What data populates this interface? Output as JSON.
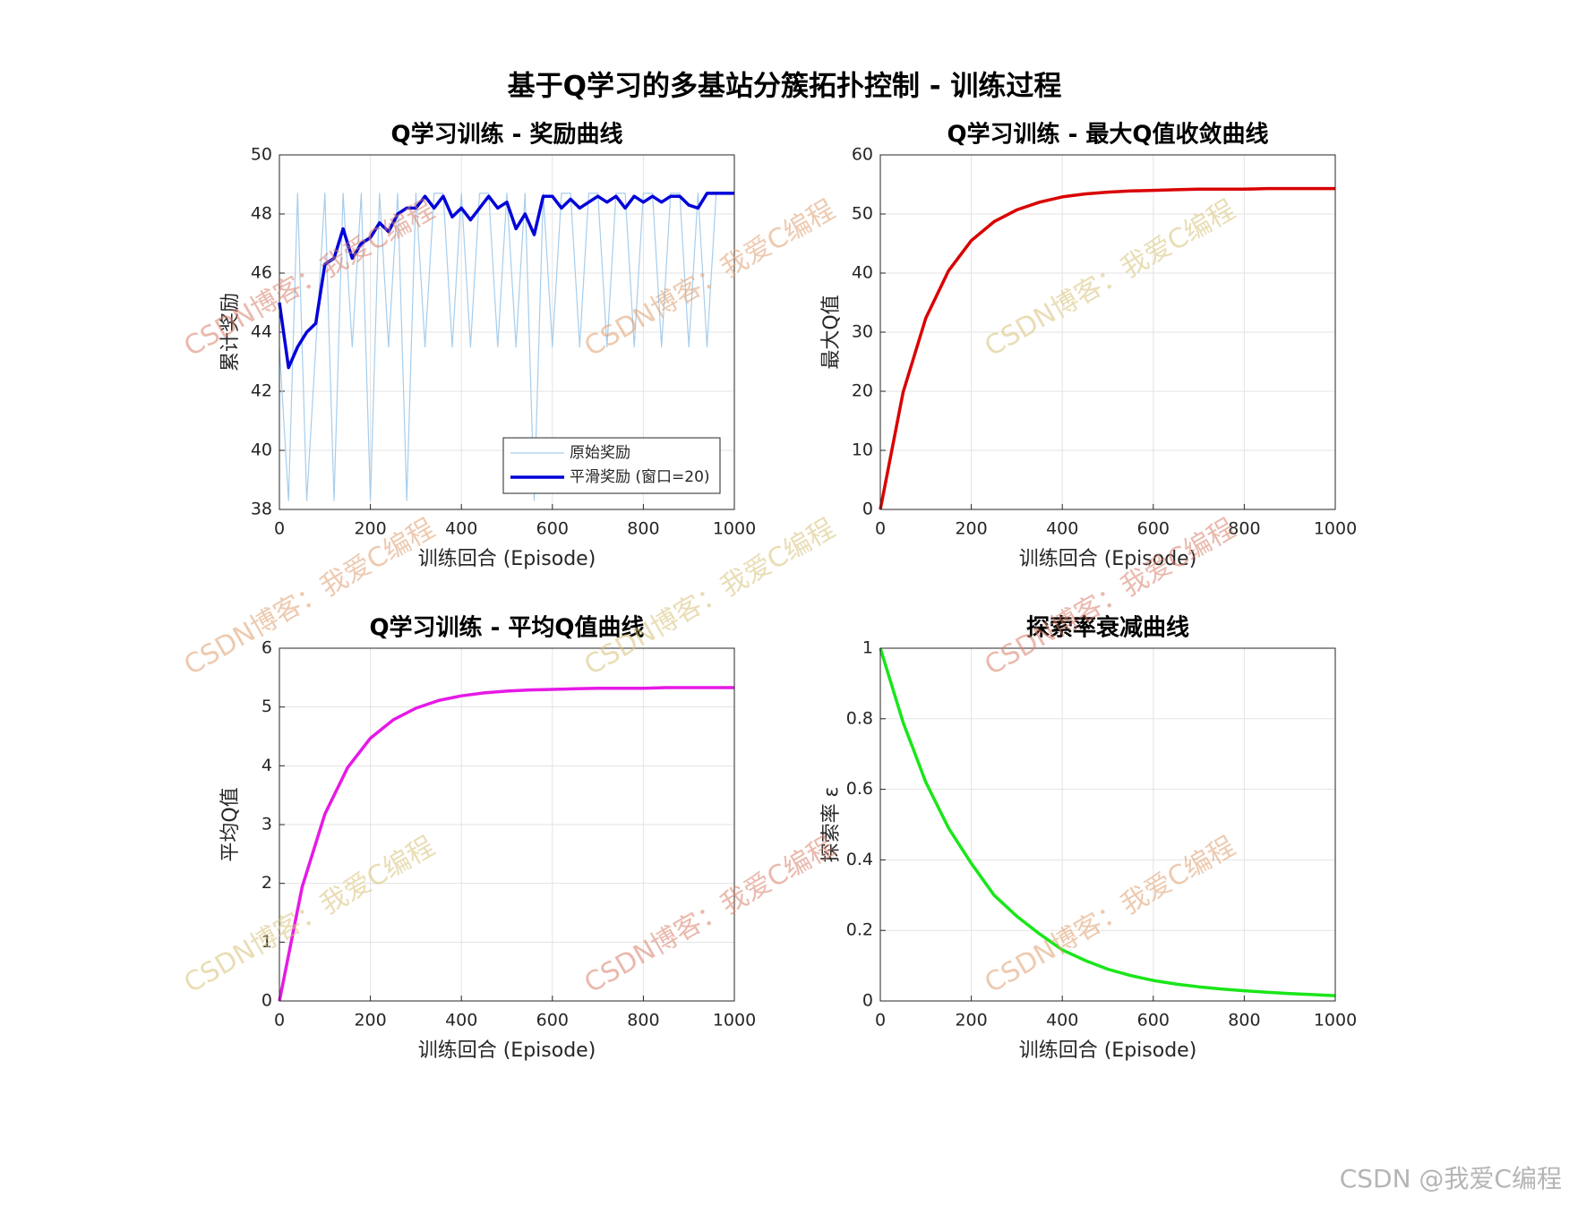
{
  "title": "基于Q学习的多基站分簇拓扑控制 - 训练过程",
  "watermark": "CSDN博客：我爱C编程",
  "footer": "CSDN @我爱C编程",
  "chart_data": [
    {
      "type": "line",
      "title": "Q学习训练 - 奖励曲线",
      "xlabel": "训练回合 (Episode)",
      "ylabel": "累计奖励",
      "x": [
        0,
        20,
        40,
        60,
        80,
        100,
        120,
        140,
        160,
        180,
        200,
        220,
        240,
        260,
        280,
        300,
        320,
        340,
        360,
        380,
        400,
        420,
        440,
        460,
        480,
        500,
        520,
        540,
        560,
        580,
        600,
        620,
        640,
        660,
        680,
        700,
        720,
        740,
        760,
        780,
        800,
        820,
        840,
        860,
        880,
        900,
        920,
        940,
        960,
        980,
        1000
      ],
      "series": [
        {
          "name": "原始奖励",
          "color": "#a6cdec",
          "values": [
            43.5,
            38.3,
            48.7,
            38.3,
            43.5,
            48.7,
            38.3,
            48.7,
            43.5,
            48.7,
            38.3,
            48.7,
            43.5,
            48.7,
            38.3,
            48.7,
            43.5,
            48.7,
            48.7,
            43.5,
            48.7,
            43.5,
            48.7,
            48.7,
            43.5,
            48.7,
            43.5,
            48.7,
            38.3,
            48.7,
            43.5,
            48.7,
            48.7,
            43.5,
            48.7,
            48.7,
            43.5,
            48.7,
            48.7,
            43.5,
            48.7,
            48.7,
            43.5,
            48.7,
            48.7,
            43.5,
            48.7,
            43.5,
            48.7,
            48.7,
            48.7
          ]
        },
        {
          "name": "平滑奖励 (窗口=20)",
          "color": "#0000d9",
          "values": [
            45,
            42.8,
            43.5,
            44,
            44.3,
            46.3,
            46.5,
            47.5,
            46.5,
            47,
            47.2,
            47.7,
            47.4,
            48,
            48.2,
            48.2,
            48.6,
            48.2,
            48.6,
            47.9,
            48.2,
            47.8,
            48.2,
            48.6,
            48.2,
            48.4,
            47.5,
            48,
            47.3,
            48.6,
            48.6,
            48.2,
            48.5,
            48.2,
            48.4,
            48.6,
            48.4,
            48.6,
            48.2,
            48.6,
            48.4,
            48.6,
            48.4,
            48.6,
            48.6,
            48.3,
            48.2,
            48.7,
            48.7,
            48.7,
            48.7
          ]
        }
      ],
      "xlim": [
        0,
        1000
      ],
      "xticks": [
        0,
        200,
        400,
        600,
        800,
        1000
      ],
      "ylim": [
        38,
        50
      ],
      "yticks": [
        38,
        40,
        42,
        44,
        46,
        48,
        50
      ],
      "grid": true,
      "legend": "lower right"
    },
    {
      "type": "line",
      "title": "Q学习训练 - 最大Q值收敛曲线",
      "xlabel": "训练回合 (Episode)",
      "ylabel": "最大Q值",
      "x": [
        0,
        50,
        100,
        150,
        200,
        250,
        300,
        350,
        400,
        450,
        500,
        550,
        600,
        650,
        700,
        750,
        800,
        850,
        900,
        950,
        1000
      ],
      "series": [
        {
          "color": "#d90000",
          "values": [
            0,
            19.8,
            32.4,
            40.4,
            45.5,
            48.7,
            50.7,
            52.0,
            52.9,
            53.4,
            53.7,
            53.9,
            54.0,
            54.1,
            54.2,
            54.2,
            54.2,
            54.3,
            54.3,
            54.3,
            54.3
          ]
        }
      ],
      "xlim": [
        0,
        1000
      ],
      "xticks": [
        0,
        200,
        400,
        600,
        800,
        1000
      ],
      "ylim": [
        0,
        60
      ],
      "yticks": [
        0,
        10,
        20,
        30,
        40,
        50,
        60
      ],
      "grid": true
    },
    {
      "type": "line",
      "title": "Q学习训练 - 平均Q值曲线",
      "xlabel": "训练回合 (Episode)",
      "ylabel": "平均Q值",
      "x": [
        0,
        50,
        100,
        150,
        200,
        250,
        300,
        350,
        400,
        450,
        500,
        550,
        600,
        650,
        700,
        750,
        800,
        850,
        900,
        950,
        1000
      ],
      "series": [
        {
          "color": "#e619e6",
          "values": [
            0,
            1.94,
            3.18,
            3.97,
            4.47,
            4.78,
            4.98,
            5.11,
            5.19,
            5.24,
            5.27,
            5.29,
            5.3,
            5.31,
            5.32,
            5.32,
            5.32,
            5.33,
            5.33,
            5.33,
            5.33
          ]
        }
      ],
      "xlim": [
        0,
        1000
      ],
      "xticks": [
        0,
        200,
        400,
        600,
        800,
        1000
      ],
      "ylim": [
        0,
        6
      ],
      "yticks": [
        0,
        1,
        2,
        3,
        4,
        5,
        6
      ],
      "grid": true
    },
    {
      "type": "line",
      "title": "探索率衰减曲线",
      "xlabel": "训练回合 (Episode)",
      "ylabel": "探索率 ε",
      "x": [
        0,
        50,
        100,
        150,
        200,
        250,
        300,
        350,
        400,
        450,
        500,
        550,
        600,
        650,
        700,
        750,
        800,
        850,
        900,
        950,
        1000
      ],
      "series": [
        {
          "color": "#19e619",
          "values": [
            1,
            0.79,
            0.62,
            0.49,
            0.39,
            0.3,
            0.24,
            0.19,
            0.145,
            0.115,
            0.09,
            0.072,
            0.058,
            0.048,
            0.04,
            0.034,
            0.029,
            0.025,
            0.021,
            0.018,
            0.015
          ]
        }
      ],
      "xlim": [
        0,
        1000
      ],
      "xticks": [
        0,
        200,
        400,
        600,
        800,
        1000
      ],
      "ylim": [
        0,
        1
      ],
      "yticks": [
        0,
        0.2,
        0.4,
        0.6,
        0.8,
        1
      ],
      "grid": true
    }
  ]
}
